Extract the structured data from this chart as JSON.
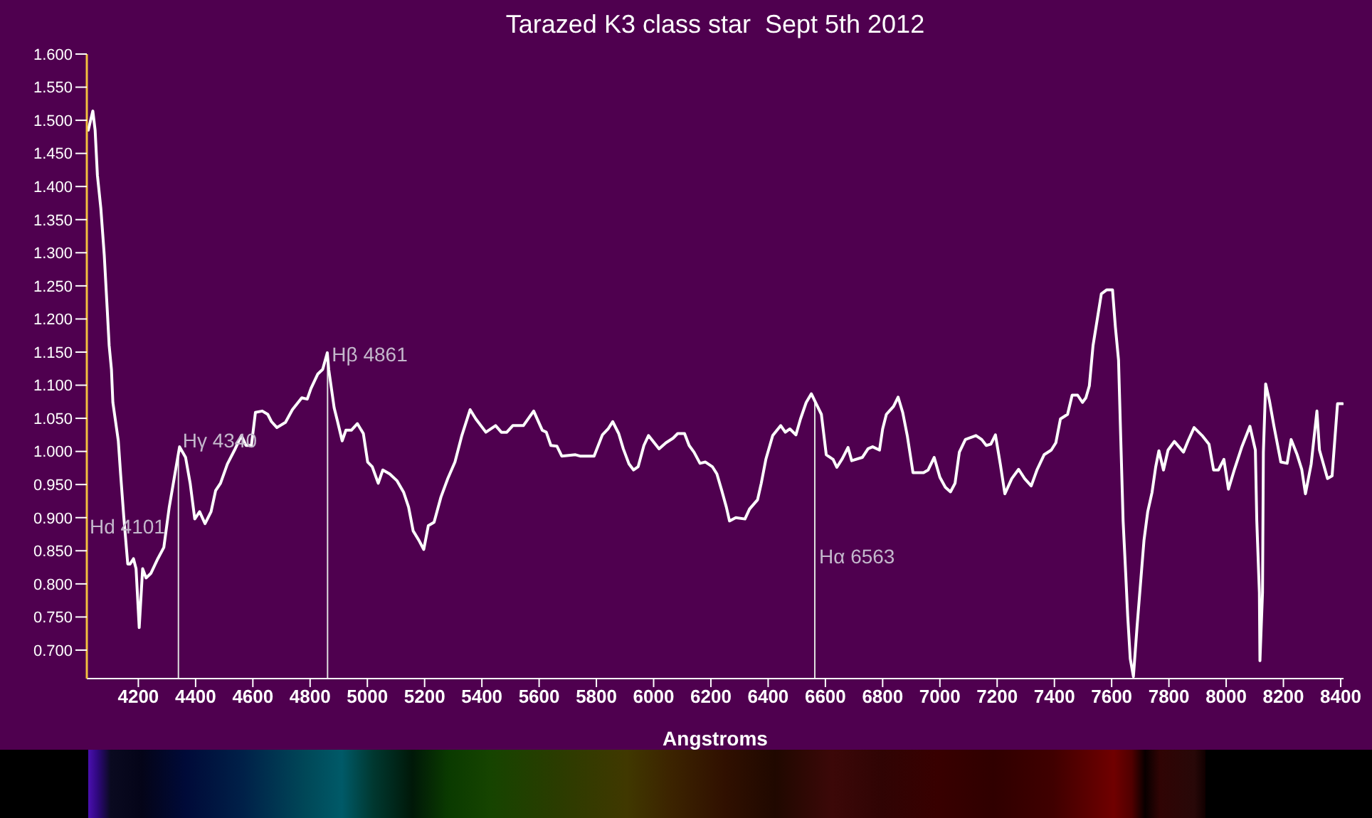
{
  "chart_data": {
    "type": "line",
    "title": "Tarazed K3 class star  Sept 5th 2012",
    "xlabel": "Angstroms",
    "x": [
      4025,
      4041,
      4049,
      4057,
      4069,
      4081,
      4091,
      4098,
      4106,
      4111,
      4130,
      4138,
      4149,
      4163,
      4171,
      4183,
      4192,
      4203,
      4215,
      4227,
      4244,
      4268,
      4289,
      4308,
      4325,
      4344,
      4365,
      4381,
      4397,
      4414,
      4433,
      4454,
      4470,
      4487,
      4511,
      4536,
      4560,
      4576,
      4595,
      4609,
      4633,
      4652,
      4665,
      4684,
      4714,
      4738,
      4771,
      4790,
      4803,
      4827,
      4844,
      4860,
      4865,
      4884,
      4896,
      4912,
      4925,
      4944,
      4965,
      4986,
      5001,
      5017,
      5038,
      5054,
      5078,
      5103,
      5127,
      5144,
      5160,
      5181,
      5197,
      5213,
      5233,
      5257,
      5281,
      5306,
      5330,
      5359,
      5379,
      5414,
      5448,
      5468,
      5487,
      5508,
      5545,
      5581,
      5611,
      5625,
      5641,
      5662,
      5679,
      5727,
      5743,
      5792,
      5821,
      5841,
      5857,
      5878,
      5894,
      5914,
      5930,
      5946,
      5966,
      5982,
      6019,
      6043,
      6068,
      6084,
      6108,
      6124,
      6141,
      6162,
      6181,
      6205,
      6221,
      6238,
      6254,
      6265,
      6287,
      6319,
      6335,
      6363,
      6376,
      6392,
      6416,
      6444,
      6460,
      6476,
      6497,
      6513,
      6533,
      6551,
      6570,
      6586,
      6603,
      6627,
      6640,
      6659,
      6679,
      6692,
      6729,
      6749,
      6765,
      6789,
      6800,
      6813,
      6838,
      6854,
      6870,
      6886,
      6906,
      6943,
      6959,
      6980,
      7000,
      7019,
      7037,
      7053,
      7068,
      7089,
      7126,
      7146,
      7162,
      7178,
      7194,
      7211,
      7227,
      7251,
      7275,
      7296,
      7319,
      7340,
      7364,
      7389,
      7405,
      7421,
      7446,
      7462,
      7481,
      7498,
      7510,
      7522,
      7535,
      7551,
      7564,
      7583,
      7603,
      7613,
      7624,
      7632,
      7640,
      7649,
      7656,
      7665,
      7676,
      7689,
      7705,
      7713,
      7726,
      7741,
      7754,
      7765,
      7781,
      7797,
      7819,
      7851,
      7867,
      7888,
      7916,
      7940,
      7956,
      7973,
      7992,
      8008,
      8029,
      8054,
      8083,
      8102,
      8107,
      8116,
      8118,
      8127,
      8130,
      8138,
      8151,
      8167,
      8191,
      8213,
      8227,
      8248,
      8264,
      8277,
      8297,
      8317,
      8326,
      8354,
      8370,
      8389,
      8407
    ],
    "values": [
      1.485,
      1.514,
      1.485,
      1.417,
      1.367,
      1.296,
      1.217,
      1.16,
      1.124,
      1.074,
      1.016,
      0.966,
      0.902,
      0.83,
      0.83,
      0.838,
      0.823,
      0.734,
      0.823,
      0.809,
      0.816,
      0.838,
      0.855,
      0.916,
      0.959,
      1.007,
      0.991,
      0.952,
      0.898,
      0.909,
      0.891,
      0.909,
      0.941,
      0.952,
      0.981,
      1.002,
      1.024,
      1.009,
      1.009,
      1.059,
      1.061,
      1.056,
      1.045,
      1.036,
      1.044,
      1.063,
      1.081,
      1.079,
      1.095,
      1.117,
      1.124,
      1.149,
      1.124,
      1.066,
      1.045,
      1.016,
      1.032,
      1.032,
      1.042,
      1.027,
      0.984,
      0.977,
      0.952,
      0.972,
      0.966,
      0.956,
      0.938,
      0.916,
      0.88,
      0.865,
      0.852,
      0.888,
      0.893,
      0.931,
      0.959,
      0.984,
      1.024,
      1.063,
      1.049,
      1.029,
      1.039,
      1.029,
      1.029,
      1.039,
      1.039,
      1.061,
      1.032,
      1.029,
      1.009,
      1.008,
      0.993,
      0.995,
      0.993,
      0.993,
      1.025,
      1.034,
      1.045,
      1.027,
      1.004,
      0.981,
      0.972,
      0.977,
      1.009,
      1.024,
      1.004,
      1.013,
      1.02,
      1.027,
      1.027,
      1.009,
      0.999,
      0.982,
      0.984,
      0.977,
      0.966,
      0.941,
      0.916,
      0.895,
      0.9,
      0.898,
      0.913,
      0.927,
      0.952,
      0.988,
      1.024,
      1.039,
      1.029,
      1.034,
      1.025,
      1.049,
      1.074,
      1.087,
      1.07,
      1.056,
      0.995,
      0.988,
      0.976,
      0.989,
      1.006,
      0.986,
      0.991,
      1.004,
      1.007,
      1.002,
      1.034,
      1.056,
      1.068,
      1.082,
      1.059,
      1.024,
      0.968,
      0.968,
      0.972,
      0.991,
      0.961,
      0.946,
      0.939,
      0.952,
      0.999,
      1.018,
      1.024,
      1.018,
      1.009,
      1.011,
      1.025,
      0.981,
      0.936,
      0.959,
      0.973,
      0.959,
      0.948,
      0.973,
      0.995,
      1.002,
      1.013,
      1.049,
      1.056,
      1.085,
      1.085,
      1.074,
      1.081,
      1.099,
      1.16,
      1.203,
      1.238,
      1.244,
      1.244,
      1.188,
      1.138,
      1.016,
      0.895,
      0.816,
      0.752,
      0.687,
      0.66,
      0.737,
      0.823,
      0.866,
      0.909,
      0.938,
      0.977,
      1.001,
      0.972,
      1.002,
      1.015,
      0.999,
      1.016,
      1.036,
      1.024,
      1.011,
      0.972,
      0.972,
      0.988,
      0.943,
      0.973,
      1.006,
      1.038,
      1.002,
      0.895,
      0.787,
      0.684,
      0.787,
      0.999,
      1.102,
      1.077,
      1.038,
      0.984,
      0.982,
      1.018,
      0.995,
      0.973,
      0.936,
      0.981,
      1.061,
      1.002,
      0.959,
      0.963,
      1.072,
      1.072
    ],
    "color": "#ffffff",
    "xlim": [
      4020,
      8410
    ],
    "xticks": [
      4200,
      4400,
      4600,
      4800,
      5000,
      5200,
      5400,
      5600,
      5800,
      6000,
      6200,
      6400,
      6600,
      6800,
      7000,
      7200,
      7400,
      7600,
      7800,
      8000,
      8200,
      8400
    ],
    "ylim": [
      0.657,
      1.6
    ],
    "yticks": [
      {
        "value": 0.7,
        "label": "0.700"
      },
      {
        "value": 0.75,
        "label": "0.750"
      },
      {
        "value": 0.8,
        "label": "0.800"
      },
      {
        "value": 0.85,
        "label": "0.850"
      },
      {
        "value": 0.9,
        "label": "0.900"
      },
      {
        "value": 0.95,
        "label": "0.950"
      },
      {
        "value": 1.0,
        "label": "1.000"
      },
      {
        "value": 1.05,
        "label": "1.050"
      },
      {
        "value": 1.1,
        "label": "1.100"
      },
      {
        "value": 1.15,
        "label": "1.150"
      },
      {
        "value": 1.2,
        "label": "1.200"
      },
      {
        "value": 1.25,
        "label": "1.250"
      },
      {
        "value": 1.3,
        "label": "1.300"
      },
      {
        "value": 1.35,
        "label": "1.350"
      },
      {
        "value": 1.4,
        "label": "1.400"
      },
      {
        "value": 1.45,
        "label": "1.450"
      },
      {
        "value": 1.5,
        "label": "1.500"
      },
      {
        "value": 1.55,
        "label": "1.550"
      },
      {
        "value": 1.6,
        "label": "1.600"
      }
    ],
    "ref_lines": [
      {
        "axis": "x",
        "value": 4340,
        "color": "#e0e0e0"
      },
      {
        "axis": "x",
        "value": 4861,
        "color": "#e0e0e0"
      },
      {
        "axis": "x",
        "value": 6563,
        "color": "#e0e0e0"
      }
    ],
    "annotations": [
      "Hd 4101",
      {
        "text": "Hγ 4340",
        "x": 4340,
        "y": 1.0
      },
      {
        "text": "Hβ 4861",
        "x": 4861,
        "y": 1.13
      },
      {
        "text": "Hα 6563",
        "x": 6563,
        "y": 0.825
      }
    ]
  }
}
